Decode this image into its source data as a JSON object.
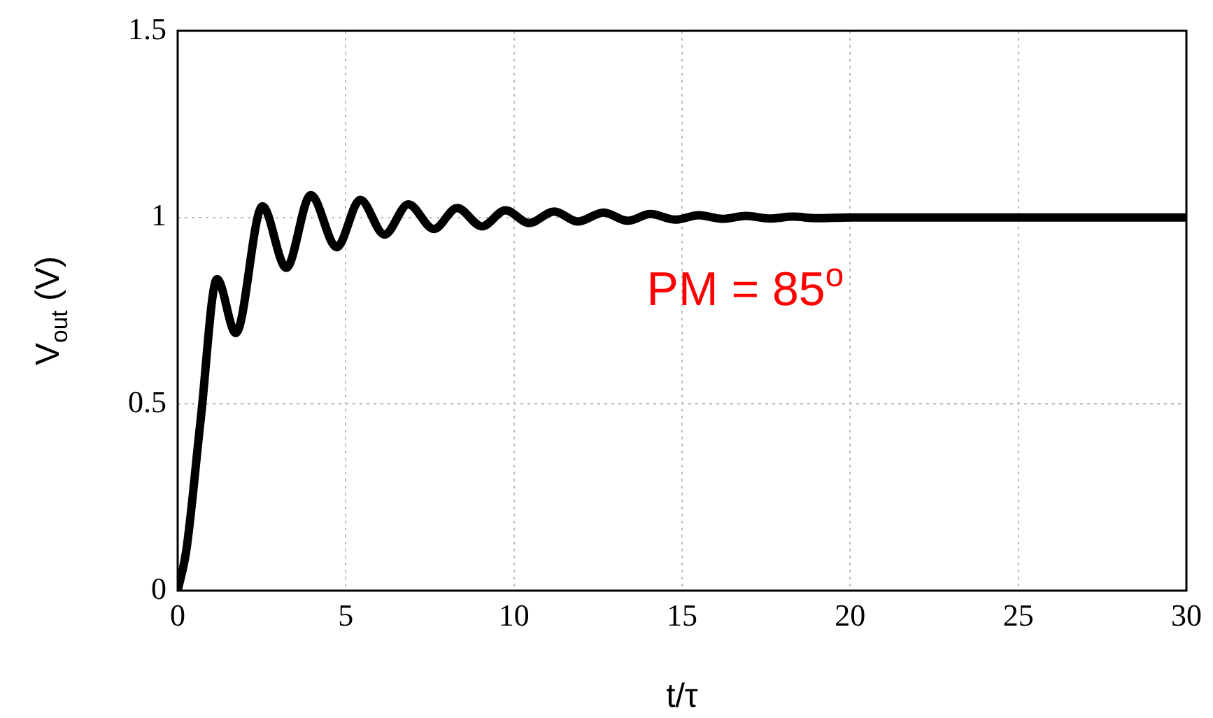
{
  "chart_data": {
    "type": "line",
    "xlabel": "t/τ",
    "ylabel": "V$_{out}$ (V)",
    "x": [
      0,
      0.26,
      0.68,
      1.17,
      1.73,
      2.52,
      3.23,
      3.96,
      4.73,
      5.43,
      6.15,
      6.86,
      7.62,
      8.31,
      9.05,
      9.75,
      10.45,
      11.2,
      11.9,
      12.67,
      13.38,
      14.06,
      14.8,
      15.5,
      16.2,
      16.9,
      17.6,
      18.3,
      19,
      20,
      25,
      30
    ],
    "series": [
      {
        "color": "#000000",
        "values": [
          0,
          0.11,
          0.455,
          0.835,
          0.69,
          1.03,
          0.865,
          1.06,
          0.92,
          1.047,
          0.954,
          1.035,
          0.969,
          1.025,
          0.976,
          1.019,
          0.985,
          1.016,
          0.989,
          1.013,
          0.991,
          1.009,
          0.994,
          1.006,
          0.996,
          1.004,
          0.997,
          1.002,
          0.998,
          1,
          1,
          1
        ]
      }
    ],
    "xlim": [
      0,
      30
    ],
    "xticks": [
      0,
      5,
      10,
      15,
      20,
      25,
      30
    ],
    "ylim": [
      0,
      1.5
    ],
    "yticks": [
      0,
      0.5,
      1,
      1.5
    ],
    "grid": true,
    "legend": false,
    "marker": "none",
    "line_style": "solid",
    "annotations": [
      "PM = 85$^{o}$"
    ]
  }
}
